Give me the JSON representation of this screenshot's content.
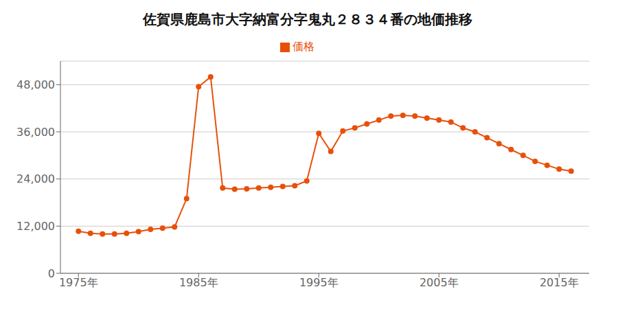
{
  "chart_data": {
    "type": "line",
    "title": "佐賀県鹿島市大字納富分字鬼丸２８３４番の地価推移",
    "x": [
      1975,
      1976,
      1977,
      1978,
      1979,
      1980,
      1981,
      1982,
      1983,
      1984,
      1985,
      1986,
      1987,
      1988,
      1989,
      1990,
      1991,
      1992,
      1993,
      1994,
      1995,
      1996,
      1997,
      1998,
      1999,
      2000,
      2001,
      2002,
      2003,
      2004,
      2005,
      2006,
      2007,
      2008,
      2009,
      2010,
      2011,
      2012,
      2013,
      2014,
      2015,
      2016
    ],
    "series": [
      {
        "name": "価格",
        "color": "#e8500a",
        "values": [
          10700,
          10200,
          10000,
          10000,
          10200,
          10600,
          11200,
          11500,
          11800,
          19000,
          47500,
          50000,
          21700,
          21400,
          21500,
          21700,
          21900,
          22100,
          22300,
          23500,
          35600,
          31000,
          36200,
          37000,
          38000,
          39000,
          40000,
          40200,
          40000,
          39500,
          39000,
          38500,
          37000,
          36000,
          34500,
          33000,
          31500,
          30000,
          28500,
          27500,
          26500,
          26000
        ]
      }
    ],
    "xlim": [
      1973.5,
      2017.5
    ],
    "xticks": [
      {
        "value": 1975,
        "label": "1975年"
      },
      {
        "value": 1985,
        "label": "1985年"
      },
      {
        "value": 1995,
        "label": "1995年"
      },
      {
        "value": 2005,
        "label": "2005年"
      },
      {
        "value": 2015,
        "label": "2015年"
      }
    ],
    "ylim": [
      0,
      54000
    ],
    "yticks": [
      0,
      {
        "value": 12000,
        "label": "12,000"
      },
      {
        "value": 24000,
        "label": "24,000"
      },
      {
        "value": 36000,
        "label": "36,000"
      },
      {
        "value": 48000,
        "label": "48,000"
      }
    ],
    "grid": true,
    "marker": "circle",
    "legend": "top"
  }
}
